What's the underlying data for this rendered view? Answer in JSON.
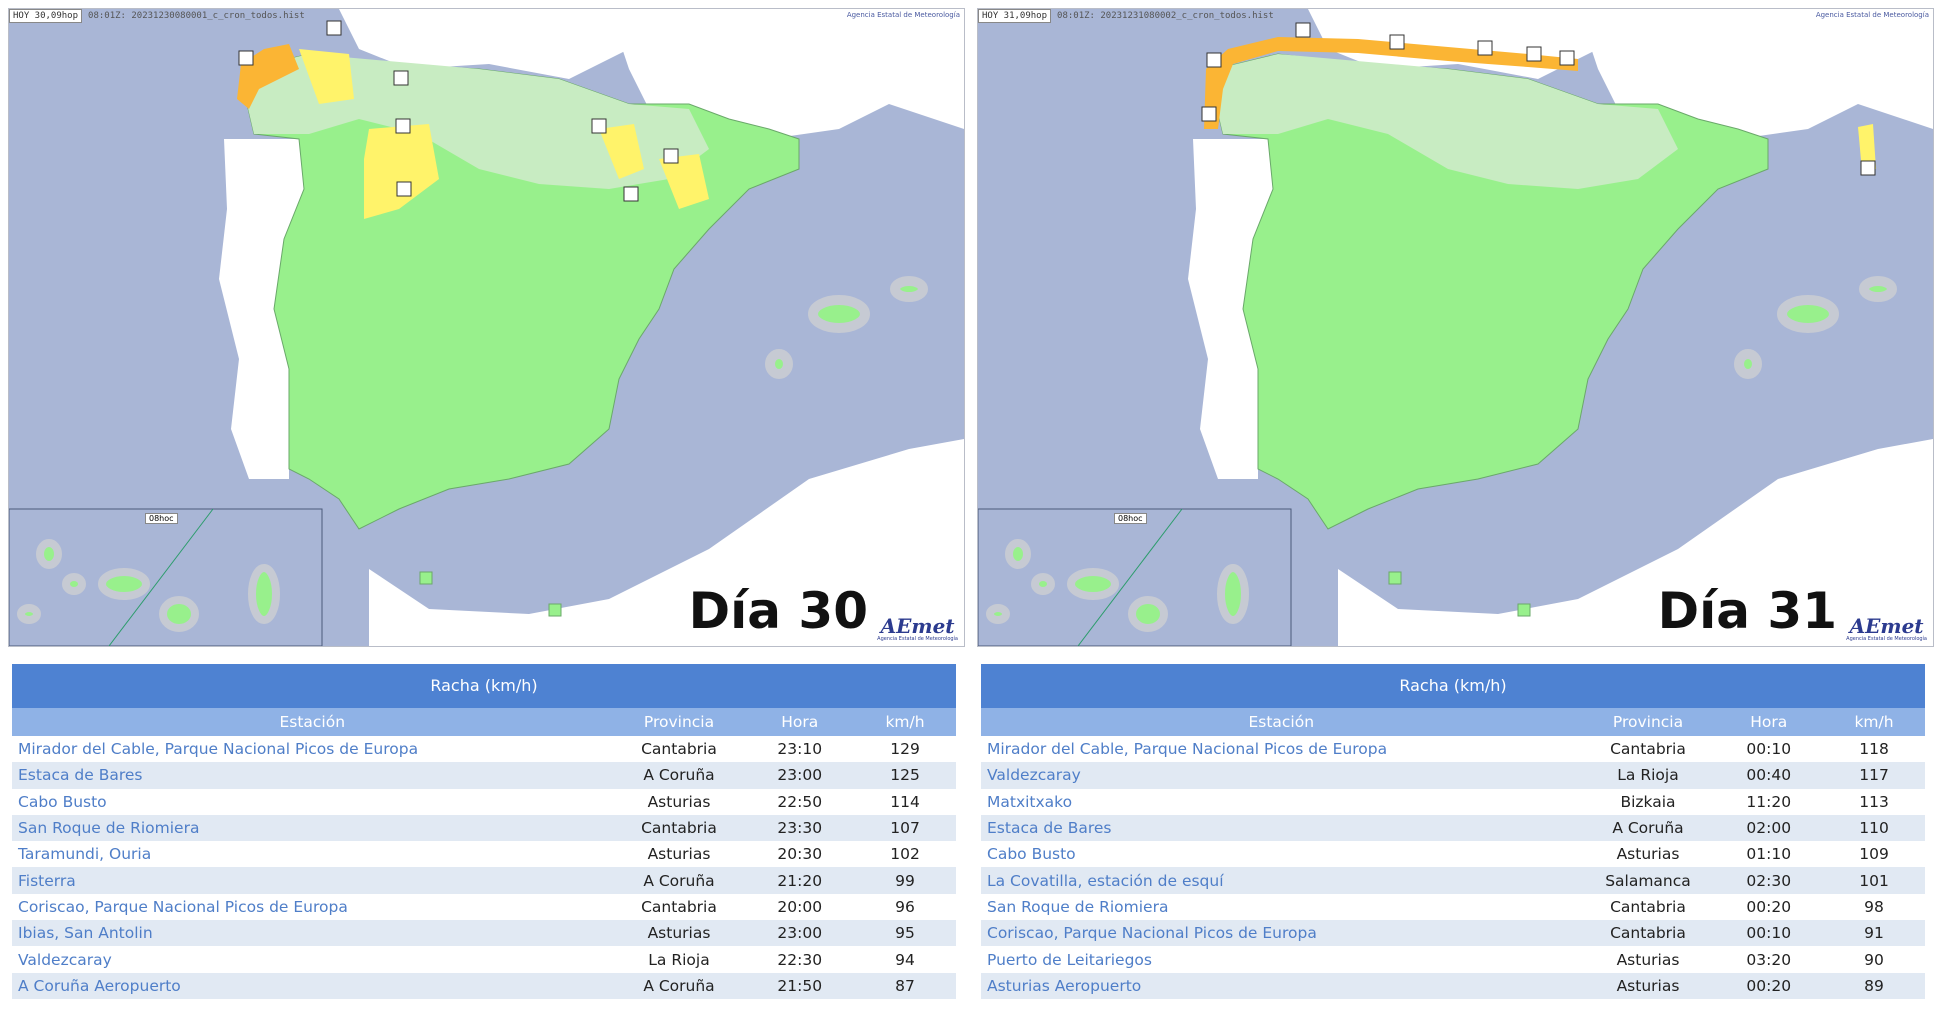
{
  "left": {
    "map": {
      "header_caption": "HOY 30,09hop",
      "header_file": "08:01Z: 20231230080001_c_cron_todos.hist",
      "agency": "Agencia Estatal de Meteorología",
      "canary_label": "08hoc",
      "day_label": "Día 30",
      "logo_text": "AEmet",
      "logo_sub": "Agencia Estatal de Meteorología"
    },
    "table": {
      "title": "Racha (km/h)",
      "columns": [
        "Estación",
        "Provincia",
        "Hora",
        "km/h"
      ],
      "rows": [
        {
          "station": "Mirador del Cable, Parque Nacional Picos de Europa",
          "province": "Cantabria",
          "time": "23:10",
          "kmh": "129"
        },
        {
          "station": "Estaca de Bares",
          "province": "A Coruña",
          "time": "23:00",
          "kmh": "125"
        },
        {
          "station": "Cabo Busto",
          "province": "Asturias",
          "time": "22:50",
          "kmh": "114"
        },
        {
          "station": "San Roque de Riomiera",
          "province": "Cantabria",
          "time": "23:30",
          "kmh": "107"
        },
        {
          "station": "Taramundi, Ouria",
          "province": "Asturias",
          "time": "20:30",
          "kmh": "102"
        },
        {
          "station": "Fisterra",
          "province": "A Coruña",
          "time": "21:20",
          "kmh": "99"
        },
        {
          "station": "Coriscao, Parque Nacional Picos de Europa",
          "province": "Cantabria",
          "time": "20:00",
          "kmh": "96"
        },
        {
          "station": "Ibias, San Antolin",
          "province": "Asturias",
          "time": "23:00",
          "kmh": "95"
        },
        {
          "station": "Valdezcaray",
          "province": "La Rioja",
          "time": "22:30",
          "kmh": "94"
        },
        {
          "station": "A Coruña Aeropuerto",
          "province": "A Coruña",
          "time": "21:50",
          "kmh": "87"
        }
      ]
    }
  },
  "right": {
    "map": {
      "header_caption": "HOY 31,09hop",
      "header_file": "08:01Z: 20231231080002_c_cron_todos.hist",
      "agency": "Agencia Estatal de Meteorología",
      "canary_label": "08hoc",
      "day_label": "Día 31",
      "logo_text": "AEmet",
      "logo_sub": "Agencia Estatal de Meteorología"
    },
    "table": {
      "title": "Racha (km/h)",
      "columns": [
        "Estación",
        "Provincia",
        "Hora",
        "km/h"
      ],
      "rows": [
        {
          "station": "Mirador del Cable, Parque Nacional Picos de Europa",
          "province": "Cantabria",
          "time": "00:10",
          "kmh": "118"
        },
        {
          "station": "Valdezcaray",
          "province": "La Rioja",
          "time": "00:40",
          "kmh": "117"
        },
        {
          "station": "Matxitxako",
          "province": "Bizkaia",
          "time": "11:20",
          "kmh": "113"
        },
        {
          "station": "Estaca de Bares",
          "province": "A Coruña",
          "time": "02:00",
          "kmh": "110"
        },
        {
          "station": "Cabo Busto",
          "province": "Asturias",
          "time": "01:10",
          "kmh": "109"
        },
        {
          "station": "La Covatilla, estación de esquí",
          "province": "Salamanca",
          "time": "02:30",
          "kmh": "101"
        },
        {
          "station": "San Roque de Riomiera",
          "province": "Cantabria",
          "time": "00:20",
          "kmh": "98"
        },
        {
          "station": "Coriscao, Parque Nacional Picos de Europa",
          "province": "Cantabria",
          "time": "00:10",
          "kmh": "91"
        },
        {
          "station": "Puerto de Leitariegos",
          "province": "Asturias",
          "time": "03:20",
          "kmh": "90"
        },
        {
          "station": "Asturias Aeropuerto",
          "province": "Asturias",
          "time": "00:20",
          "kmh": "89"
        }
      ]
    }
  },
  "colors": {
    "sea": "#a9b6d6",
    "land_other": "#ffffff",
    "warning_green": "#98f08c",
    "warning_light_green": "#c8ecc2",
    "warning_yellow": "#fff36a",
    "warning_orange": "#fbb534",
    "table_header": "#4e82d2",
    "table_subheader": "#8fb2e6",
    "station_link": "#4f7ec8"
  }
}
